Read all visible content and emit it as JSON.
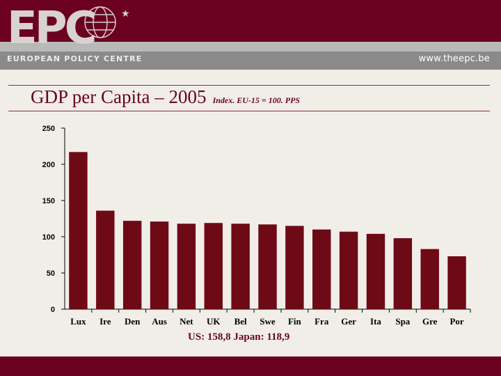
{
  "header": {
    "logo_text": "EPC",
    "logo_subtitle": "EUROPEAN POLICY CENTRE",
    "url": "www.theepc.be"
  },
  "slide": {
    "title": "GDP per Capita – 2005",
    "subtitle": "Index. EU-15 = 100. PPS",
    "footnote": "US: 158,8 Japan: 118,9"
  },
  "colors": {
    "brand": "#6b0020",
    "bar": "#6e0a16"
  },
  "chart_data": {
    "type": "bar",
    "title": "",
    "xlabel": "",
    "ylabel": "",
    "categories": [
      "Lux",
      "Ire",
      "Den",
      "Aus",
      "Net",
      "UK",
      "Bel",
      "Swe",
      "Fin",
      "Fra",
      "Ger",
      "Ita",
      "Spa",
      "Gre",
      "Por"
    ],
    "values": [
      217,
      136,
      122,
      121,
      118,
      119,
      118,
      117,
      115,
      110,
      107,
      104,
      98,
      83,
      73
    ],
    "ylim": [
      0,
      250
    ],
    "yticks": [
      0,
      50,
      100,
      150,
      200,
      250
    ],
    "grid": false,
    "legend": "none"
  }
}
